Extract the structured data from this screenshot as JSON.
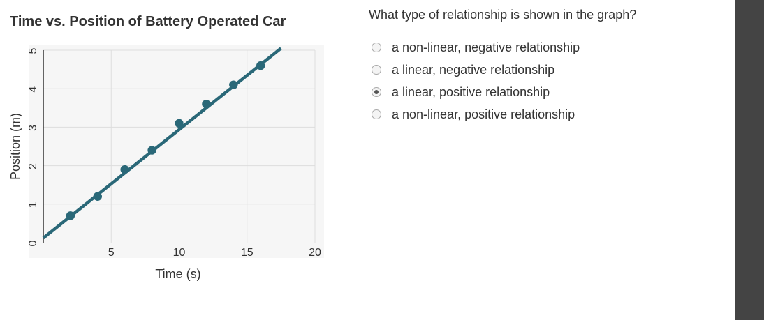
{
  "chart_data": {
    "type": "scatter",
    "title": "Time vs. Position of Battery Operated Car",
    "xlabel": "Time (s)",
    "ylabel": "Position (m)",
    "xlim": [
      0,
      20
    ],
    "ylim": [
      0,
      5
    ],
    "x_ticks": [
      5,
      10,
      15,
      20
    ],
    "y_ticks": [
      0,
      1,
      2,
      3,
      4,
      5
    ],
    "grid": true,
    "series": [
      {
        "x": [
          2,
          4,
          6,
          8,
          10,
          12,
          14,
          16
        ],
        "y": [
          0.7,
          1.2,
          1.9,
          2.4,
          3.1,
          3.6,
          4.1,
          4.6
        ]
      }
    ],
    "trend_line": {
      "x": [
        0,
        17.5
      ],
      "y": [
        0.12,
        5.05
      ]
    },
    "marker_color": "#2a6878"
  },
  "question": {
    "text": "What type of relationship is shown in the graph?",
    "options": [
      {
        "label": "a non-linear, negative relationship",
        "selected": false
      },
      {
        "label": "a linear, negative relationship",
        "selected": false
      },
      {
        "label": "a linear, positive relationship",
        "selected": true
      },
      {
        "label": "a non-linear, positive relationship",
        "selected": false
      }
    ]
  }
}
